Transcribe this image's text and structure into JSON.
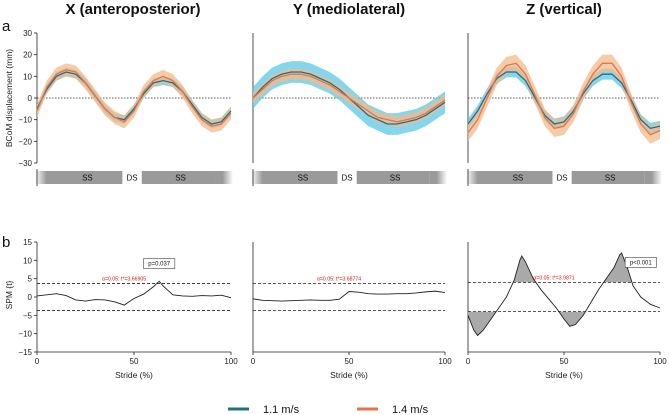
{
  "panel_labels": {
    "a": "a",
    "b": "b"
  },
  "legend": [
    "1.1 m/s",
    "1.4 m/s"
  ],
  "colors": {
    "speed_1_1": "#1f6f8b",
    "speed_1_1_band": "#5bc8e6",
    "speed_1_4": "#e8734a",
    "speed_1_4_band": "#f3b98a",
    "threshold_text": "#d11111",
    "phase_bar": "#9a9a9a"
  },
  "phase_labels": [
    "SS",
    "DS",
    "SS"
  ],
  "chart_data": [
    {
      "type": "line",
      "title": "X (anteroposterior)",
      "xlabel": "",
      "ylabel": "BCoM displacement (mm)",
      "xlim": [
        0,
        100
      ],
      "ylim": [
        -30,
        30
      ],
      "yticks": [
        30,
        20,
        10,
        0,
        -10,
        -20,
        -30
      ],
      "xticks": [],
      "show_yticks": true,
      "zero_line": "dotted",
      "x": [
        0,
        5,
        10,
        15,
        20,
        25,
        30,
        35,
        40,
        45,
        50,
        55,
        60,
        65,
        70,
        75,
        80,
        85,
        90,
        95,
        100
      ],
      "series": [
        {
          "name": "1.1 m/s",
          "values": [
            -5,
            4,
            10,
            12,
            11,
            7,
            1,
            -5,
            -9,
            -10,
            -5,
            2,
            7,
            8,
            7,
            3,
            -3,
            -9,
            -12,
            -11,
            -6
          ],
          "band": 2
        },
        {
          "name": "1.4 m/s",
          "values": [
            -6,
            5,
            11,
            13,
            12,
            7,
            1,
            -5,
            -9,
            -11,
            -6,
            3,
            8,
            10,
            8,
            3,
            -4,
            -10,
            -13,
            -12,
            -7
          ],
          "band": 3
        }
      ]
    },
    {
      "type": "line",
      "title": "Y (mediolateral)",
      "xlabel": "",
      "ylabel": "",
      "xlim": [
        0,
        100
      ],
      "ylim": [
        -30,
        30
      ],
      "yticks": [],
      "xticks": [],
      "show_yticks": false,
      "zero_line": "dotted",
      "x": [
        0,
        5,
        10,
        15,
        20,
        25,
        30,
        35,
        40,
        45,
        50,
        55,
        60,
        65,
        70,
        75,
        80,
        85,
        90,
        95,
        100
      ],
      "series": [
        {
          "name": "1.1 m/s",
          "values": [
            0,
            5,
            9,
            11,
            12,
            12,
            11,
            9,
            7,
            4,
            0,
            -4,
            -8,
            -10,
            -12,
            -12,
            -11,
            -10,
            -8,
            -5,
            -2
          ],
          "band": 5
        },
        {
          "name": "1.4 m/s",
          "values": [
            0,
            4,
            8,
            10,
            11,
            11,
            10,
            8,
            6,
            3,
            0,
            -3,
            -6,
            -9,
            -10,
            -11,
            -10,
            -9,
            -7,
            -4,
            -1
          ],
          "band": 2.5
        }
      ]
    },
    {
      "type": "line",
      "title": "Z (vertical)",
      "xlabel": "",
      "ylabel": "",
      "xlim": [
        0,
        100
      ],
      "ylim": [
        -30,
        30
      ],
      "yticks": [],
      "xticks": [],
      "show_yticks": false,
      "zero_line": "dotted",
      "x": [
        0,
        5,
        10,
        15,
        20,
        25,
        30,
        35,
        40,
        45,
        50,
        55,
        60,
        65,
        70,
        75,
        80,
        85,
        90,
        95,
        100
      ],
      "series": [
        {
          "name": "1.1 m/s",
          "values": [
            -12,
            -6,
            2,
            9,
            12,
            12,
            8,
            0,
            -8,
            -12,
            -11,
            -6,
            2,
            8,
            11,
            11,
            7,
            -1,
            -10,
            -14,
            -13
          ],
          "band": 2.5
        },
        {
          "name": "1.4 m/s",
          "values": [
            -16,
            -10,
            0,
            10,
            15,
            16,
            11,
            1,
            -9,
            -14,
            -13,
            -7,
            3,
            11,
            16,
            16,
            10,
            -2,
            -12,
            -17,
            -15
          ],
          "band": 4
        }
      ]
    },
    {
      "type": "line",
      "title": "",
      "xlabel": "Stride (%)",
      "ylabel": "SPM {t}",
      "xlim": [
        0,
        100
      ],
      "ylim": [
        -15,
        15
      ],
      "yticks": [
        15,
        10,
        5,
        0,
        -5,
        -10,
        -15
      ],
      "xticks": [
        0,
        50,
        100
      ],
      "show_yticks": true,
      "zero_line": "none",
      "threshold": 3.66905,
      "threshold_label": "α=0.05: t*=3.66905",
      "pvalue_label": "p=0.037",
      "pvalue_at": 63,
      "x": [
        0,
        5,
        10,
        15,
        20,
        25,
        30,
        35,
        40,
        45,
        50,
        55,
        60,
        63,
        65,
        70,
        75,
        80,
        85,
        90,
        95,
        100
      ],
      "series": [
        {
          "name": "SPM {t}",
          "values": [
            0.3,
            0.6,
            0.9,
            0.4,
            -0.8,
            -1.1,
            -0.7,
            -0.8,
            -1.3,
            -2.2,
            -0.4,
            0.8,
            2.8,
            4.3,
            3.0,
            0.6,
            0.3,
            0.2,
            0.4,
            0.3,
            0.5,
            -0.2
          ]
        }
      ]
    },
    {
      "type": "line",
      "title": "",
      "xlabel": "Stride (%)",
      "ylabel": "",
      "xlim": [
        0,
        100
      ],
      "ylim": [
        -15,
        15
      ],
      "yticks": [],
      "xticks": [
        0,
        50,
        100
      ],
      "show_yticks": false,
      "zero_line": "none",
      "threshold": 3.68774,
      "threshold_label": "α=0.05: t*=3.68774",
      "x": [
        0,
        5,
        10,
        15,
        20,
        25,
        30,
        35,
        40,
        45,
        50,
        55,
        60,
        65,
        70,
        75,
        80,
        85,
        90,
        95,
        100
      ],
      "series": [
        {
          "name": "SPM {t}",
          "values": [
            -0.5,
            -0.9,
            -1.0,
            -1.1,
            -1.0,
            -0.9,
            -0.8,
            -0.9,
            -0.9,
            -0.6,
            1.5,
            1.3,
            0.9,
            0.8,
            0.8,
            0.9,
            0.9,
            1.1,
            1.4,
            1.6,
            1.2
          ]
        }
      ]
    },
    {
      "type": "line",
      "title": "",
      "xlabel": "Stride (%)",
      "ylabel": "",
      "xlim": [
        0,
        100
      ],
      "ylim": [
        -15,
        15
      ],
      "yticks": [],
      "xticks": [
        0,
        50,
        100
      ],
      "show_yticks": false,
      "zero_line": "none",
      "threshold": 3.9871,
      "threshold_label": "α=0.05: t*=3.9871",
      "pvalue_label": "p<0.001",
      "pvalue_at": 90,
      "shade_clusters": true,
      "x": [
        0,
        3,
        5,
        8,
        12,
        16,
        20,
        24,
        27,
        28,
        30,
        34,
        38,
        42,
        46,
        50,
        53,
        56,
        60,
        64,
        68,
        72,
        76,
        79,
        80,
        83,
        86,
        90,
        95,
        100
      ],
      "series": [
        {
          "name": "SPM {t}",
          "values": [
            -5,
            -9,
            -10.5,
            -9,
            -6,
            -3,
            0,
            4.5,
            10,
            11.2,
            9.5,
            5,
            2,
            -0.5,
            -3,
            -6,
            -8,
            -7.5,
            -5,
            -1.5,
            2,
            5,
            8,
            11.5,
            12,
            8,
            3,
            0,
            -2,
            -3
          ]
        }
      ]
    }
  ]
}
